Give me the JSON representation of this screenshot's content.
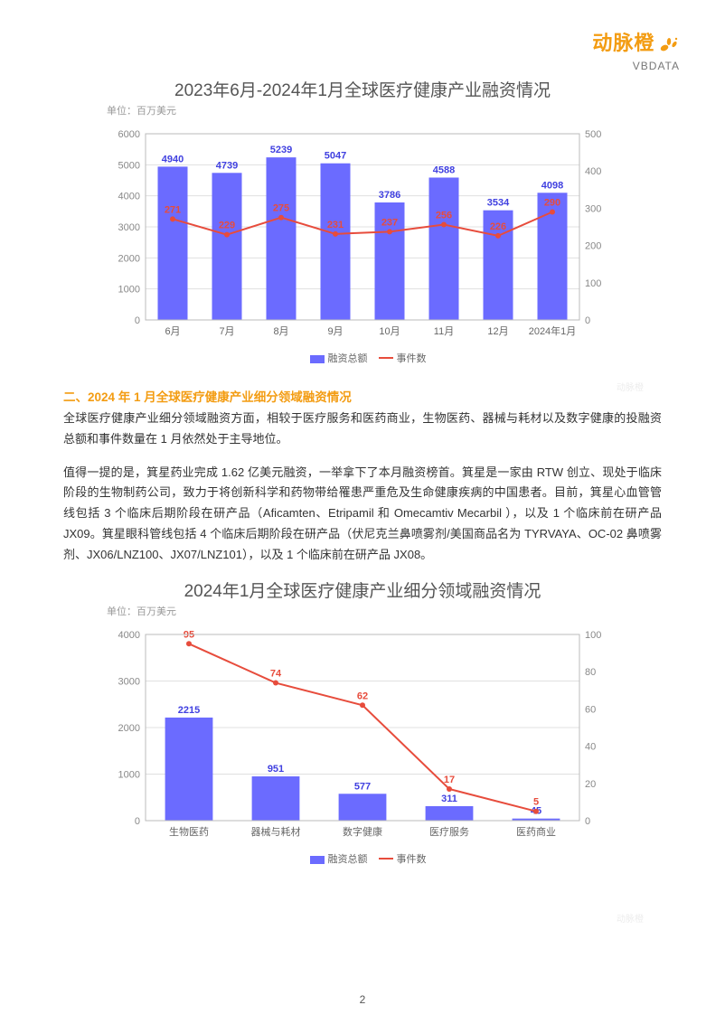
{
  "logo": {
    "cn": "动脉橙",
    "en": "VBDATA"
  },
  "chart1": {
    "title": "2023年6月-2024年1月全球医疗健康产业融资情况",
    "unit": "单位：百万美元",
    "type": "bar+line",
    "categories": [
      "6月",
      "7月",
      "8月",
      "9月",
      "10月",
      "11月",
      "12月",
      "2024年1月"
    ],
    "bar_values": [
      4940,
      4739,
      5239,
      5047,
      3786,
      4588,
      3534,
      4098
    ],
    "line_values": [
      271,
      229,
      275,
      231,
      237,
      256,
      226,
      290
    ],
    "bar_color": "#6b6bff",
    "line_color": "#e74c3c",
    "bar_value_color": "#4040e0",
    "line_value_color": "#e74c3c",
    "left_ylim": [
      0,
      6000
    ],
    "left_ytick_step": 1000,
    "right_ylim": [
      0,
      500
    ],
    "right_ytick_step": 100,
    "grid_color": "#e0e0e0",
    "axis_color": "#bbb",
    "label_fontsize": 11,
    "legend_items": [
      {
        "label": "融资总额",
        "color": "#6b6bff",
        "type": "bar"
      },
      {
        "label": "事件数",
        "color": "#e74c3c",
        "type": "line"
      }
    ]
  },
  "section2": {
    "heading": "二、2024 年 1 月全球医疗健康产业细分领域融资情况",
    "p1": "全球医疗健康产业细分领域融资方面，相较于医疗服务和医药商业，生物医药、器械与耗材以及数字健康的投融资总额和事件数量在 1 月依然处于主导地位。",
    "p2": "值得一提的是，箕星药业完成 1.62 亿美元融资，一举拿下了本月融资榜首。箕星是一家由 RTW 创立、现处于临床阶段的生物制药公司，致力于将创新科学和药物带给罹患严重危及生命健康疾病的中国患者。目前，箕星心血管管线包括 3 个临床后期阶段在研产品（Aficamten、Etripamil 和 Omecamtiv Mecarbil ），以及 1 个临床前在研产品 JX09。箕星眼科管线包括 4 个临床后期阶段在研产品（伏尼克兰鼻喷雾剂/美国商品名为 TYRVAYA、OC-02 鼻喷雾剂、JX06/LNZ100、JX07/LNZ101），以及 1 个临床前在研产品 JX08。"
  },
  "chart2": {
    "title": "2024年1月全球医疗健康产业细分领域融资情况",
    "unit": "单位：百万美元",
    "type": "bar+line",
    "categories": [
      "生物医药",
      "器械与耗材",
      "数字健康",
      "医疗服务",
      "医药商业"
    ],
    "bar_values": [
      2215,
      951,
      577,
      311,
      45
    ],
    "line_values": [
      95,
      74,
      62,
      17,
      5
    ],
    "bar_color": "#6b6bff",
    "line_color": "#e74c3c",
    "bar_value_color": "#4040e0",
    "line_value_color": "#e74c3c",
    "left_ylim": [
      0,
      4000
    ],
    "left_ytick_step": 1000,
    "right_ylim": [
      0,
      100
    ],
    "right_ytick_step": 20,
    "grid_color": "#e0e0e0",
    "axis_color": "#bbb",
    "label_fontsize": 11,
    "legend_items": [
      {
        "label": "融资总额",
        "color": "#6b6bff",
        "type": "bar"
      },
      {
        "label": "事件数",
        "color": "#e74c3c",
        "type": "line"
      }
    ],
    "right_line_label": "45"
  },
  "page_number": "2"
}
